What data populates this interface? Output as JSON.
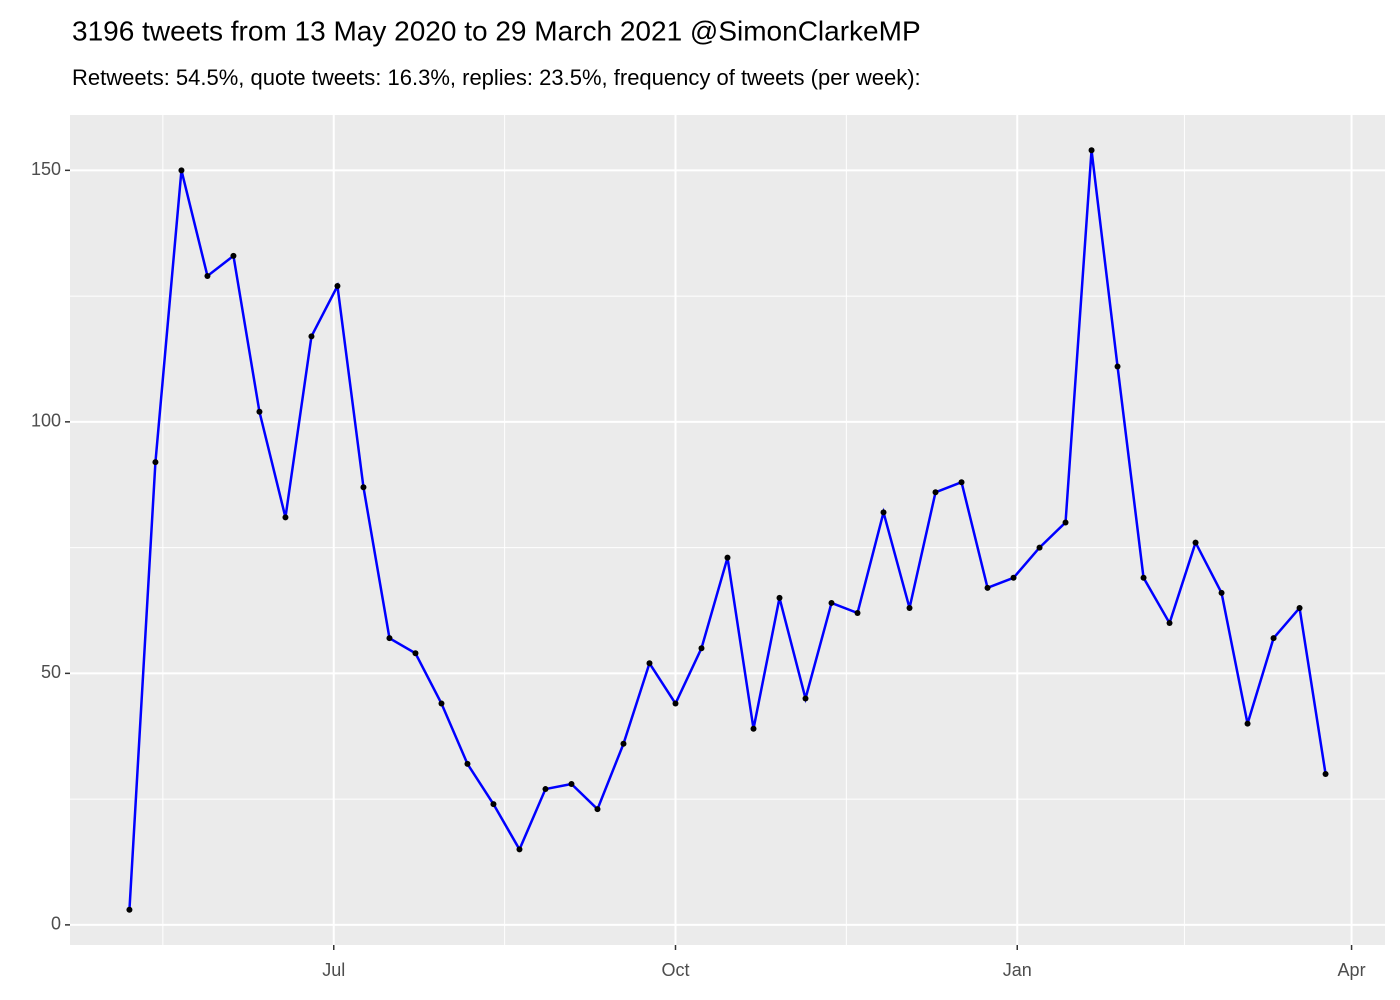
{
  "chart_data": {
    "type": "line",
    "title": "3196 tweets from 13 May 2020 to 29 March 2021 @SimonClarkeMP",
    "subtitle": "Retweets: 54.5%, quote tweets: 16.3%, replies: 23.5%, frequency of tweets (per week):",
    "x": [
      "2020-05-07",
      "2020-05-14",
      "2020-05-21",
      "2020-05-28",
      "2020-06-04",
      "2020-06-11",
      "2020-06-18",
      "2020-06-25",
      "2020-07-02",
      "2020-07-09",
      "2020-07-16",
      "2020-07-23",
      "2020-07-30",
      "2020-08-06",
      "2020-08-13",
      "2020-08-20",
      "2020-08-27",
      "2020-09-03",
      "2020-09-10",
      "2020-09-17",
      "2020-09-24",
      "2020-10-01",
      "2020-10-08",
      "2020-10-15",
      "2020-10-22",
      "2020-10-29",
      "2020-11-05",
      "2020-11-12",
      "2020-11-19",
      "2020-11-26",
      "2020-12-03",
      "2020-12-10",
      "2020-12-17",
      "2020-12-24",
      "2020-12-31",
      "2021-01-07",
      "2021-01-14",
      "2021-01-21",
      "2021-01-28",
      "2021-02-04",
      "2021-02-11",
      "2021-02-18",
      "2021-02-25",
      "2021-03-04",
      "2021-03-11",
      "2021-03-18",
      "2021-03-25"
    ],
    "values": [
      3,
      92,
      150,
      129,
      133,
      102,
      81,
      117,
      127,
      87,
      57,
      54,
      44,
      32,
      24,
      15,
      27,
      28,
      23,
      36,
      52,
      44,
      55,
      73,
      39,
      65,
      45,
      64,
      62,
      82,
      63,
      86,
      88,
      67,
      69,
      75,
      80,
      154,
      111,
      69,
      60,
      76,
      66,
      40,
      57,
      63,
      30
    ],
    "color": "#0000ff",
    "point_color": "#000000",
    "xlim": [
      "2020-04-21",
      "2021-04-10"
    ],
    "xticks": [
      {
        "value": "2020-07-01",
        "label": "Jul"
      },
      {
        "value": "2020-10-01",
        "label": "Oct"
      },
      {
        "value": "2021-01-01",
        "label": "Jan"
      },
      {
        "value": "2021-04-01",
        "label": "Apr"
      }
    ],
    "ylim": [
      -4,
      161
    ],
    "yticks": [
      0,
      50,
      100,
      150
    ],
    "grid": true
  }
}
